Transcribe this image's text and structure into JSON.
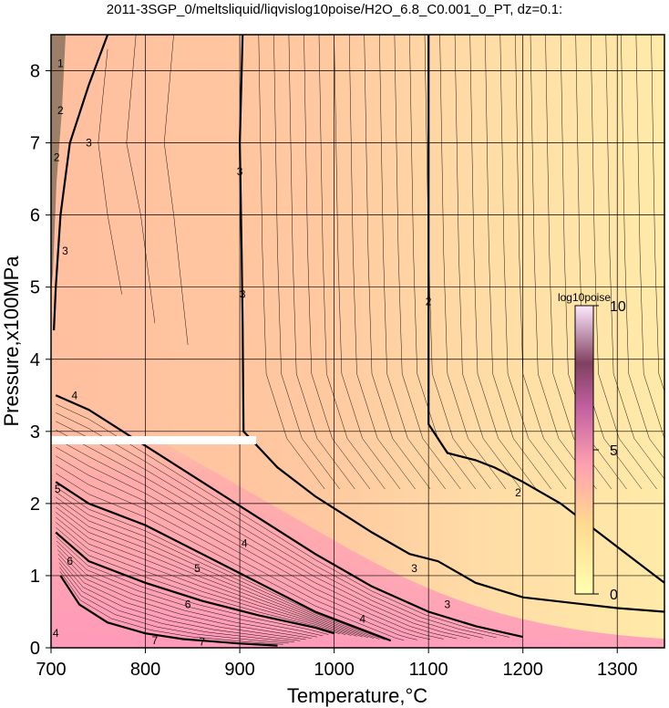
{
  "chart_data": {
    "type": "heatmap",
    "title": "2011-3SGP_0/meltsliquid/liqvislog10poise/H2O_6.8_C0.001_0_PT, dz=0.1:",
    "xlabel": "Temperature,°C",
    "ylabel": "Pressure,x100MPa",
    "xlim": [
      700,
      1350
    ],
    "ylim": [
      0,
      8.5
    ],
    "x_ticks": [
      "700",
      "800",
      "900",
      "1000",
      "1100",
      "1200",
      "1300"
    ],
    "y_ticks": [
      "0",
      "1",
      "2",
      "3",
      "4",
      "5",
      "6",
      "7",
      "8"
    ],
    "grid": true,
    "colorbar": {
      "title": "log10poise",
      "range": [
        0,
        10
      ],
      "tick_labels": [
        "0",
        "5",
        "10"
      ],
      "colors": [
        "#ffffb0",
        "#ffd890",
        "#ff9fb0",
        "#c060a0",
        "#804060",
        "#ffe8ff"
      ]
    },
    "contour_labels": [
      "1",
      "2",
      "3",
      "4",
      "5",
      "6",
      "7"
    ],
    "major_contours": [
      {
        "level": "2",
        "points": [
          [
            1100,
            8.5
          ],
          [
            1100,
            3.1
          ],
          [
            1120,
            2.7
          ],
          [
            1150,
            2.6
          ],
          [
            1170,
            2.5
          ],
          [
            1200,
            2.3
          ],
          [
            1240,
            2.0
          ],
          [
            1280,
            1.6
          ],
          [
            1320,
            1.2
          ],
          [
            1350,
            0.9
          ]
        ]
      },
      {
        "level": "3",
        "points": [
          [
            903,
            8.5
          ],
          [
            900,
            7.0
          ],
          [
            902,
            5.5
          ],
          [
            903,
            4.5
          ],
          [
            904,
            3.0
          ],
          [
            940,
            2.5
          ],
          [
            980,
            2.1
          ],
          [
            1040,
            1.6
          ],
          [
            1080,
            1.3
          ],
          [
            1110,
            1.2
          ],
          [
            1150,
            0.9
          ],
          [
            1200,
            0.7
          ],
          [
            1300,
            0.55
          ],
          [
            1350,
            0.5
          ]
        ]
      },
      {
        "level": "3",
        "points": [
          [
            760,
            8.5
          ],
          [
            740,
            7.8
          ],
          [
            720,
            7.0
          ],
          [
            710,
            6.0
          ],
          [
            705,
            5.0
          ],
          [
            703,
            4.4
          ]
        ]
      },
      {
        "level": "4",
        "points": [
          [
            705,
            3.5
          ],
          [
            740,
            3.3
          ],
          [
            800,
            2.8
          ],
          [
            860,
            2.3
          ],
          [
            920,
            1.8
          ],
          [
            980,
            1.3
          ],
          [
            1040,
            0.85
          ],
          [
            1100,
            0.5
          ],
          [
            1150,
            0.3
          ],
          [
            1200,
            0.15
          ]
        ]
      },
      {
        "level": "5",
        "points": [
          [
            705,
            2.3
          ],
          [
            740,
            2.0
          ],
          [
            800,
            1.7
          ],
          [
            860,
            1.3
          ],
          [
            920,
            0.9
          ],
          [
            980,
            0.5
          ],
          [
            1040,
            0.2
          ],
          [
            1060,
            0.1
          ]
        ]
      },
      {
        "level": "6",
        "points": [
          [
            705,
            1.6
          ],
          [
            740,
            1.2
          ],
          [
            800,
            0.9
          ],
          [
            860,
            0.65
          ],
          [
            920,
            0.45
          ],
          [
            980,
            0.28
          ],
          [
            1000,
            0.2
          ]
        ]
      },
      {
        "level": "7",
        "points": [
          [
            710,
            1.0
          ],
          [
            730,
            0.6
          ],
          [
            760,
            0.35
          ],
          [
            800,
            0.2
          ],
          [
            840,
            0.12
          ],
          [
            900,
            0.06
          ],
          [
            940,
            0.03
          ]
        ]
      }
    ],
    "annotations": [
      "white bar at P = 2.9 from 700 to 920 °C"
    ]
  }
}
